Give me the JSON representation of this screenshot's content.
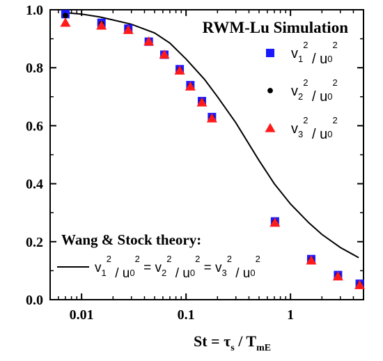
{
  "chart_data": {
    "type": "scatter",
    "title": "RWM-Lu Simulation",
    "xscale": "log",
    "xlim": [
      0.005,
      5
    ],
    "ylim": [
      0.0,
      1.0
    ],
    "xticks": [
      0.01,
      0.1,
      1
    ],
    "xtick_labels": [
      "0.01",
      "0.1",
      "1"
    ],
    "yticks": [
      0.0,
      0.2,
      0.4,
      0.6,
      0.8,
      1.0
    ],
    "ytick_labels": [
      "0.0",
      "0.2",
      "0.4",
      "0.6",
      "0.8",
      "1.0"
    ],
    "xlabel": {
      "main": "St = τ",
      "sub1": "s",
      "mid": " / T",
      "sub2": "mE"
    },
    "series": [
      {
        "name": {
          "v": "v",
          "i": "1",
          "p": "2",
          "div": " / u",
          "z": "0",
          "p2": "2"
        },
        "marker": "square",
        "color": "#1a1aff",
        "x": [
          0.007,
          0.0155,
          0.028,
          0.044,
          0.062,
          0.087,
          0.11,
          0.142,
          0.177,
          0.71,
          1.58,
          2.85,
          4.6
        ],
        "y": [
          0.985,
          0.955,
          0.935,
          0.89,
          0.845,
          0.795,
          0.74,
          0.685,
          0.63,
          0.27,
          0.14,
          0.085,
          0.055
        ]
      },
      {
        "name": {
          "v": "v",
          "i": "2",
          "p": "2",
          "div": " / u",
          "z": "0",
          "p2": "2"
        },
        "marker": "circle",
        "color": "#000000",
        "x": [
          0.007,
          0.0155,
          0.028,
          0.044,
          0.062,
          0.087,
          0.11,
          0.142,
          0.177,
          0.71,
          1.58,
          2.85,
          4.6
        ],
        "y": [
          0.98,
          0.952,
          0.932,
          0.888,
          0.843,
          0.793,
          0.738,
          0.683,
          0.628,
          0.268,
          0.138,
          0.083,
          0.053
        ]
      },
      {
        "name": {
          "v": "v",
          "i": "3",
          "p": "2",
          "div": " / u",
          "z": "0",
          "p2": "2"
        },
        "marker": "triangle",
        "color": "#ff1a1a",
        "x": [
          0.007,
          0.0155,
          0.028,
          0.044,
          0.062,
          0.087,
          0.11,
          0.142,
          0.177,
          0.71,
          1.58,
          2.85,
          4.6
        ],
        "y": [
          0.955,
          0.945,
          0.93,
          0.89,
          0.845,
          0.79,
          0.735,
          0.68,
          0.625,
          0.265,
          0.135,
          0.08,
          0.05
        ]
      }
    ],
    "theory": {
      "label": "Wang & Stock theory:",
      "equation_parts": [
        "v",
        "1",
        "2",
        " / u",
        "0",
        "2",
        " = v",
        "2",
        "2",
        " / u",
        "0",
        "2",
        " = v",
        "3",
        "2",
        " / u",
        "0",
        "2"
      ],
      "color": "#000000",
      "x": [
        0.007,
        0.01,
        0.015,
        0.02,
        0.03,
        0.05,
        0.07,
        0.1,
        0.15,
        0.2,
        0.3,
        0.5,
        0.7,
        1.0,
        1.5,
        2.0,
        3.0,
        4.5
      ],
      "y": [
        0.99,
        0.985,
        0.975,
        0.965,
        0.95,
        0.92,
        0.885,
        0.83,
        0.76,
        0.7,
        0.61,
        0.48,
        0.4,
        0.33,
        0.265,
        0.225,
        0.18,
        0.145
      ]
    },
    "grid": false,
    "legend_position": "top-right"
  }
}
